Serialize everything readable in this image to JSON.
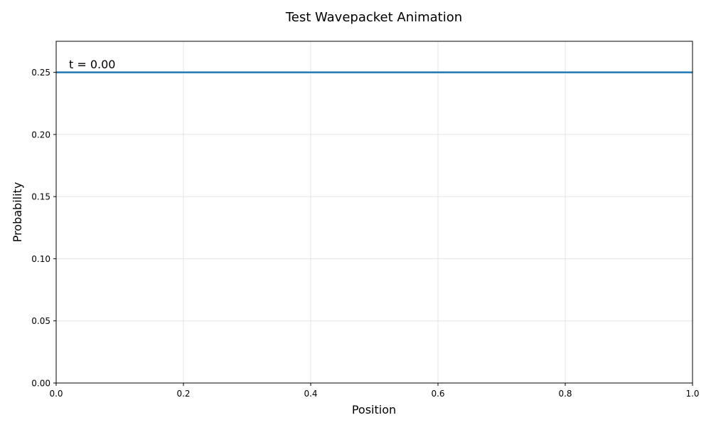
{
  "chart_data": {
    "type": "line",
    "title": "Test Wavepacket Animation",
    "xlabel": "Position",
    "ylabel": "Probability",
    "xlim": [
      0.0,
      1.0
    ],
    "ylim": [
      0.0,
      0.275
    ],
    "x_ticks": [
      0.0,
      0.2,
      0.4,
      0.6,
      0.8,
      1.0
    ],
    "x_tick_labels": [
      "0.0",
      "0.2",
      "0.4",
      "0.6",
      "0.8",
      "1.0"
    ],
    "y_ticks": [
      0.0,
      0.05,
      0.1,
      0.15,
      0.2,
      0.25
    ],
    "y_tick_labels": [
      "0.00",
      "0.05",
      "0.10",
      "0.15",
      "0.20",
      "0.25"
    ],
    "grid": true,
    "annotation": "t = 0.00",
    "series": [
      {
        "color": "#1f77b4",
        "x": [
          0.0,
          1.0
        ],
        "y": [
          0.25,
          0.25
        ]
      }
    ]
  }
}
